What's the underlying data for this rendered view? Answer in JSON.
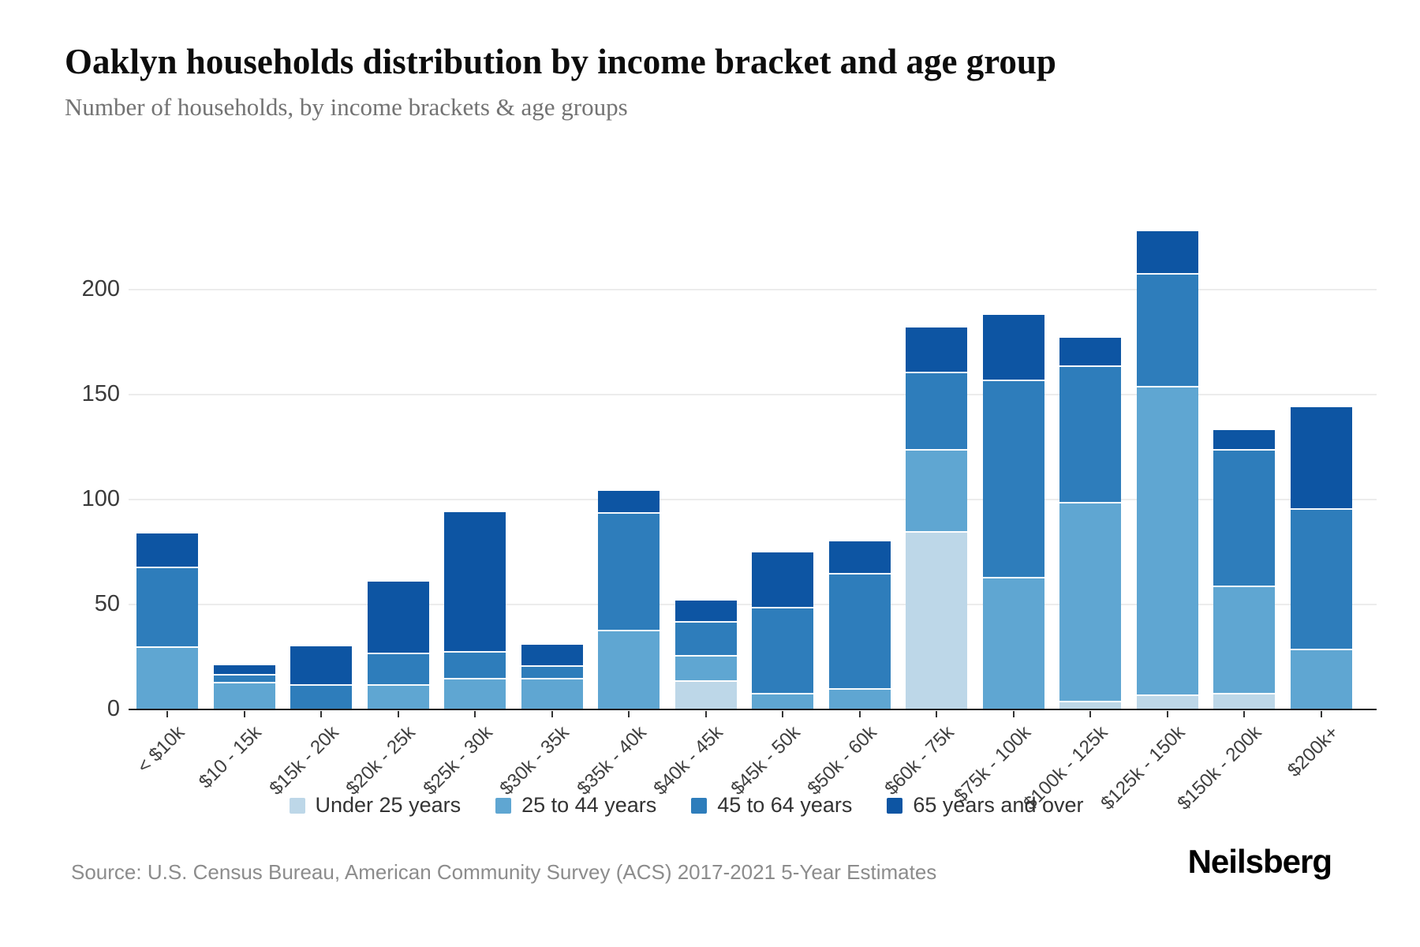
{
  "header": {
    "title": "Oaklyn households distribution by income bracket and age group",
    "subtitle": "Number of households, by income brackets & age groups"
  },
  "chart_data": {
    "type": "bar",
    "stacked": true,
    "title": "Oaklyn households distribution by income bracket and age group",
    "subtitle": "Number of households, by income brackets & age groups",
    "xlabel": "",
    "ylabel": "Number of households",
    "ylim": [
      0,
      230
    ],
    "yticks": [
      0,
      50,
      100,
      150,
      200
    ],
    "grid": true,
    "legend_position": "bottom",
    "categories": [
      "< $10k",
      "$10 - 15k",
      "$15k - 20k",
      "$20k - 25k",
      "$25k - 30k",
      "$30k - 35k",
      "$35k - 40k",
      "$40k - 45k",
      "$45k - 50k",
      "$50k - 60k",
      "$60k - 75k",
      "$75k - 100k",
      "$100k - 125k",
      "$125k - 150k",
      "$150k - 200k",
      "$200k+"
    ],
    "series": [
      {
        "name": "Under 25 years",
        "color": "#bdd7e8",
        "values": [
          0,
          0,
          0,
          0,
          0,
          0,
          0,
          14,
          0,
          0,
          85,
          0,
          4,
          7,
          8,
          0
        ]
      },
      {
        "name": "25 to 44 years",
        "color": "#5fa6d2",
        "values": [
          30,
          13,
          0,
          12,
          15,
          15,
          38,
          12,
          8,
          10,
          39,
          63,
          95,
          147,
          51,
          29
        ]
      },
      {
        "name": "45 to 64 years",
        "color": "#2e7dbb",
        "values": [
          38,
          4,
          12,
          15,
          13,
          6,
          56,
          16,
          41,
          55,
          37,
          94,
          65,
          54,
          65,
          67
        ]
      },
      {
        "name": "65 years and over",
        "color": "#0d55a3",
        "values": [
          16,
          4,
          18,
          34,
          66,
          10,
          10,
          10,
          26,
          15,
          21,
          31,
          13,
          20,
          9,
          48
        ]
      }
    ]
  },
  "footer": {
    "source": "Source: U.S. Census Bureau, American Community Survey (ACS) 2017-2021 5-Year Estimates",
    "logo": "Neilsberg"
  }
}
